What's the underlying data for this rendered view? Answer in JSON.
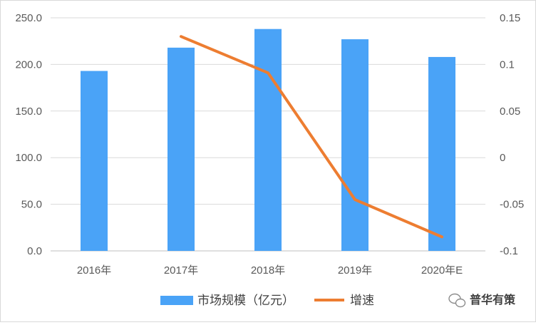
{
  "chart_data": {
    "type": "bar",
    "categories": [
      "2016年",
      "2017年",
      "2018年",
      "2019年",
      "2020年E"
    ],
    "series": [
      {
        "name": "市场规模（亿元）",
        "type": "bar",
        "axis": "left",
        "color": "#4aa3f7",
        "values": [
          193,
          218,
          238,
          227,
          208
        ]
      },
      {
        "name": "增速",
        "type": "line",
        "axis": "right",
        "color": "#ed7d31",
        "values": [
          null,
          0.13,
          0.091,
          -0.045,
          -0.085
        ]
      }
    ],
    "y_left": {
      "min": 0,
      "max": 250,
      "ticks": [
        "0.0",
        "50.0",
        "100.0",
        "150.0",
        "200.0",
        "250.0"
      ]
    },
    "y_right": {
      "min": -0.1,
      "max": 0.15,
      "ticks": [
        "-0.1",
        "-0.05",
        "0",
        "0.05",
        "0.1",
        "0.15"
      ]
    },
    "grid": true,
    "legend_position": "bottom"
  },
  "watermark": {
    "text": "普华有策",
    "icon": "wechat-icon"
  }
}
